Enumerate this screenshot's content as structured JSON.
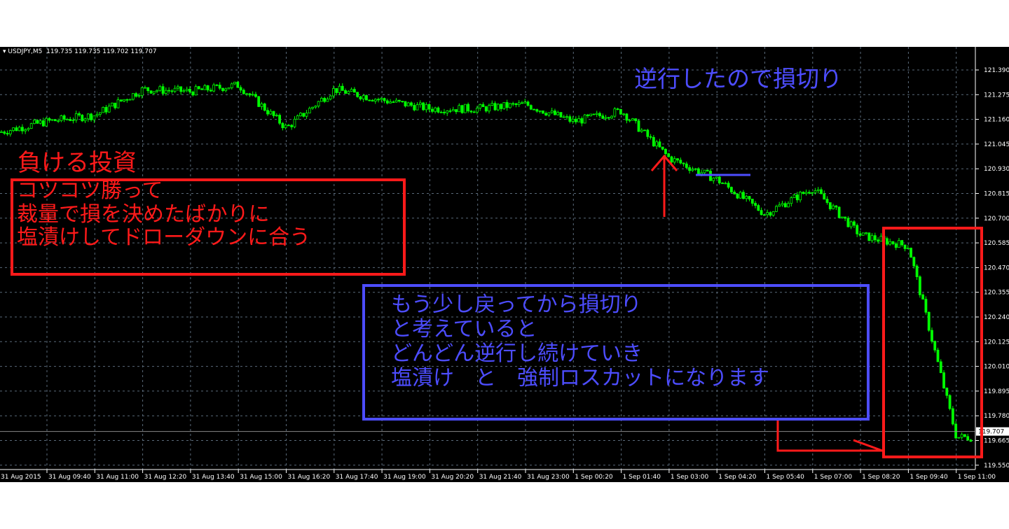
{
  "header": {
    "symbol": "USDJPY,M5",
    "ohlc": "119.735 119.735 119.702 119.707"
  },
  "chart_data": {
    "type": "candlestick",
    "symbol": "USDJPY",
    "timeframe": "M5",
    "y_ticks": [
      "121.390",
      "121.275",
      "121.160",
      "121.045",
      "120.930",
      "120.815",
      "120.700",
      "120.585",
      "120.470",
      "120.355",
      "120.240",
      "120.125",
      "120.010",
      "119.895",
      "119.780",
      "119.665",
      "119.550"
    ],
    "ylim": [
      119.53,
      121.5
    ],
    "x_ticks": [
      "31 Aug 2015",
      "31 Aug 09:40",
      "31 Aug 11:00",
      "31 Aug 12:20",
      "31 Aug 13:40",
      "31 Aug 15:00",
      "31 Aug 16:20",
      "31 Aug 17:40",
      "31 Aug 19:00",
      "31 Aug 20:20",
      "31 Aug 21:40",
      "31 Aug 23:00",
      "1 Sep 00:20",
      "1 Sep 01:40",
      "1 Sep 03:00",
      "1 Sep 04:20",
      "1 Sep 05:40",
      "1 Sep 07:00",
      "1 Sep 08:20",
      "1 Sep 09:40",
      "1 Sep 11:00"
    ],
    "approx_close_at_ticks": [
      121.1,
      121.15,
      121.18,
      121.3,
      121.29,
      121.32,
      121.12,
      121.3,
      121.25,
      121.21,
      121.21,
      121.23,
      121.15,
      121.2,
      120.98,
      120.88,
      120.72,
      120.84,
      120.62,
      120.57,
      119.68
    ],
    "current_price": "119.707",
    "grid": true,
    "colors": {
      "candle": "#00ff00",
      "background": "#000000",
      "grid": "#5a6a7a"
    }
  },
  "annotations": {
    "title_red": "負ける投資",
    "red_box_lines": [
      "コツコツ勝って",
      "裁量で損を決めたばかりに",
      "塩漬けしてドローダウンに合う"
    ],
    "blue_top": "逆行したので損切り",
    "blue_box_lines": [
      "もう少し戻ってから損切り",
      "と考えていると",
      "どんどん逆行し続けていき",
      "塩漬け　と　強制ロスカットになります"
    ]
  }
}
